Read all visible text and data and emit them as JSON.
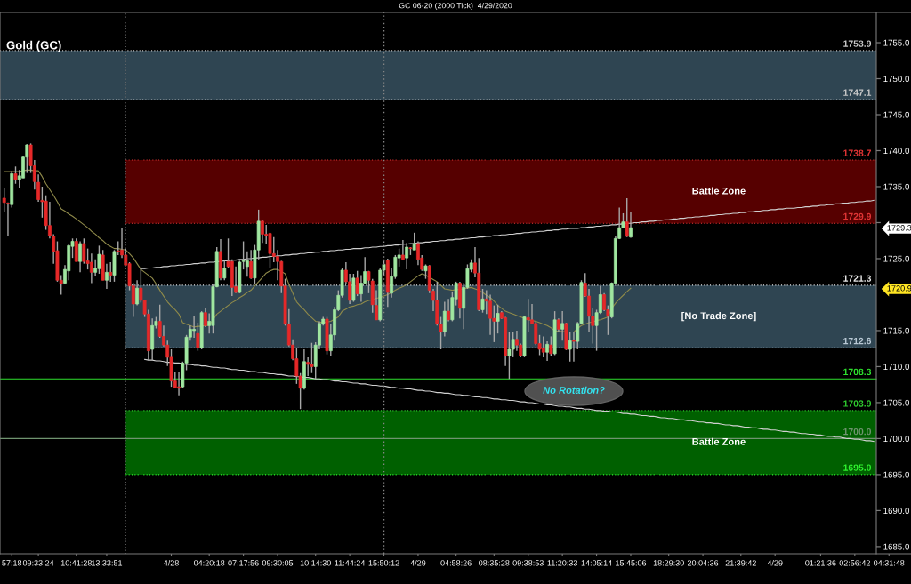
{
  "chart_data": {
    "type": "candlestick",
    "title": "GC 06-20 (2000 Tick)  4/29/2020",
    "subtitle": "Gold (GC)",
    "categories": [
      null,
      null,
      "57:18",
      null,
      null,
      null,
      null,
      null,
      null,
      "09:33:24",
      null,
      null,
      null,
      null,
      null,
      null,
      null,
      null,
      null,
      "10:41:28",
      null,
      null,
      null,
      null,
      null,
      null,
      null,
      "13:33:51",
      null,
      null,
      null,
      null,
      null,
      null,
      null,
      null,
      null,
      null,
      null,
      null,
      null,
      null,
      null,
      null,
      "4/28",
      null,
      null,
      null,
      null,
      null,
      null,
      null,
      null,
      null,
      "04:20:18",
      null,
      null,
      null,
      null,
      null,
      null,
      null,
      null,
      "07:17:56",
      null,
      null,
      null,
      null,
      null,
      null,
      null,
      null,
      "09:30:05",
      null,
      null,
      null,
      null,
      null,
      null,
      null,
      null,
      null,
      "10:14:30",
      null,
      null,
      null,
      null,
      null,
      null,
      null,
      null,
      "11:44:24",
      null,
      null,
      null,
      null,
      null,
      null,
      null,
      null,
      "15:50:12",
      null,
      null,
      null,
      null,
      null,
      null,
      null,
      null,
      "4/29",
      null,
      null,
      null,
      null,
      null,
      null,
      null,
      null,
      null,
      "04:58:26",
      null,
      null,
      null,
      null,
      null,
      null,
      null,
      null,
      null,
      "08:35:28",
      null,
      null,
      null,
      null,
      null,
      null,
      null,
      null,
      "09:38:53",
      null,
      null,
      null,
      null,
      null,
      null,
      null,
      null,
      "11:20:33",
      null,
      null,
      null,
      null,
      null,
      null,
      null,
      null,
      "14:05:14",
      null,
      null,
      null,
      null,
      null,
      null,
      null,
      null,
      "15:45:06",
      null,
      null,
      null,
      null,
      null,
      null,
      null,
      null,
      null,
      "18:29:30",
      null,
      null,
      null,
      null,
      null,
      null,
      null,
      null,
      "20:04:36",
      null,
      null,
      null,
      null,
      null,
      null,
      null,
      null,
      null,
      "21:39:42",
      null,
      null,
      null,
      null,
      null,
      null,
      null,
      null,
      "4/29",
      null,
      null,
      null,
      null,
      null,
      null,
      null,
      null,
      null,
      null,
      null,
      "01:21:36",
      null,
      null,
      null,
      null,
      null,
      null,
      null,
      null,
      "02:56:42",
      null,
      null,
      null,
      null,
      null,
      null,
      null,
      null,
      "04:31:48",
      null
    ],
    "ohlc": [
      [
        1733.4,
        1734.8,
        1731.5,
        1732.8
      ],
      [
        1732.7,
        1732.8,
        1728.2,
        1732.6
      ],
      [
        1732.5,
        1737.2,
        1732.1,
        1736.8
      ],
      [
        1736.8,
        1737.8,
        1735.4,
        1736.0
      ],
      [
        1736.0,
        1737.3,
        1734.8,
        1736.5
      ],
      [
        1736.2,
        1739.3,
        1736.2,
        1739.1
      ],
      [
        1739.1,
        1740.9,
        1736.9,
        1740.8
      ],
      [
        1740.8,
        1741.0,
        1736.9,
        1737.9
      ],
      [
        1737.9,
        1738.7,
        1734.6,
        1735.7
      ],
      [
        1735.6,
        1736.7,
        1732.9,
        1733.2
      ],
      [
        1733.1,
        1735.0,
        1730.7,
        1732.9
      ],
      [
        1733.0,
        1733.8,
        1729.0,
        1729.6
      ],
      [
        1729.6,
        1732.9,
        1727.8,
        1728.2
      ],
      [
        1728.1,
        1728.4,
        1724.3,
        1726.0
      ],
      [
        1726.1,
        1727.4,
        1721.8,
        1722.0
      ],
      [
        1722.0,
        1722.7,
        1720.0,
        1721.5
      ],
      [
        1721.6,
        1724.1,
        1721.5,
        1723.5
      ],
      [
        1723.3,
        1727.0,
        1722.0,
        1726.8
      ],
      [
        1726.7,
        1727.8,
        1725.1,
        1727.4
      ],
      [
        1727.4,
        1727.8,
        1724.6,
        1724.6
      ],
      [
        1724.6,
        1727.4,
        1723.1,
        1727.1
      ],
      [
        1727.1,
        1727.8,
        1724.3,
        1724.6
      ],
      [
        1724.7,
        1726.4,
        1723.5,
        1724.3
      ],
      [
        1724.5,
        1725.7,
        1721.6,
        1723.1
      ],
      [
        1723.1,
        1724.9,
        1722.6,
        1723.7
      ],
      [
        1723.6,
        1726.8,
        1722.9,
        1725.6
      ],
      [
        1725.5,
        1726.2,
        1722.0,
        1722.0
      ],
      [
        1722.0,
        1724.3,
        1720.8,
        1723.1
      ],
      [
        1723.1,
        1724.5,
        1721.8,
        1722.7
      ],
      [
        1722.7,
        1726.2,
        1721.8,
        1726.0
      ],
      [
        1726.1,
        1727.4,
        1725.5,
        1726.0
      ],
      [
        1726.2,
        1729.2,
        1725.1,
        1725.5
      ],
      [
        1725.5,
        1726.4,
        1724.1,
        1724.1
      ],
      [
        1724.3,
        1724.5,
        1720.6,
        1721.2
      ],
      [
        1721.2,
        1721.6,
        1716.9,
        1718.7
      ],
      [
        1718.7,
        1722.0,
        1718.5,
        1720.9
      ],
      [
        1720.9,
        1723.7,
        1718.9,
        1719.2
      ],
      [
        1719.2,
        1719.2,
        1716.9,
        1717.3
      ],
      [
        1717.3,
        1717.9,
        1710.9,
        1712.2
      ],
      [
        1712.4,
        1716.7,
        1710.9,
        1715.7
      ],
      [
        1715.7,
        1716.9,
        1715.3,
        1716.3
      ],
      [
        1716.3,
        1718.6,
        1714.0,
        1714.2
      ],
      [
        1714.2,
        1715.7,
        1712.8,
        1713.0
      ],
      [
        1713.0,
        1713.6,
        1710.1,
        1711.3
      ],
      [
        1711.3,
        1712.4,
        1707.2,
        1708.0
      ],
      [
        1708.0,
        1709.3,
        1707.0,
        1707.1
      ],
      [
        1707.2,
        1709.3,
        1706.0,
        1707.0
      ],
      [
        1707.2,
        1710.7,
        1707.0,
        1710.5
      ],
      [
        1710.5,
        1714.4,
        1709.5,
        1714.1
      ],
      [
        1714.1,
        1715.7,
        1713.6,
        1715.2
      ],
      [
        1715.0,
        1717.1,
        1714.0,
        1715.2
      ],
      [
        1714.6,
        1716.1,
        1712.2,
        1712.6
      ],
      [
        1712.6,
        1717.7,
        1712.4,
        1717.5
      ],
      [
        1717.5,
        1718.1,
        1715.5,
        1715.7
      ],
      [
        1715.7,
        1717.4,
        1714.6,
        1716.3
      ],
      [
        1715.7,
        1721.4,
        1714.6,
        1721.1
      ],
      [
        1721.1,
        1726.6,
        1721.0,
        1726.0
      ],
      [
        1726.0,
        1727.7,
        1722.0,
        1722.3
      ],
      [
        1722.3,
        1724.7,
        1722.0,
        1723.7
      ],
      [
        1724.6,
        1727.8,
        1723.7,
        1723.9
      ],
      [
        1724.6,
        1724.9,
        1719.8,
        1721.0
      ],
      [
        1721.1,
        1723.9,
        1720.2,
        1720.3
      ],
      [
        1720.3,
        1724.7,
        1720.2,
        1724.5
      ],
      [
        1724.6,
        1727.4,
        1723.5,
        1724.7
      ],
      [
        1723.9,
        1726.0,
        1722.5,
        1724.7
      ],
      [
        1724.6,
        1726.2,
        1722.2,
        1722.3
      ],
      [
        1722.3,
        1726.9,
        1721.4,
        1726.2
      ],
      [
        1726.2,
        1731.8,
        1724.9,
        1730.2
      ],
      [
        1730.2,
        1730.4,
        1727.2,
        1728.4
      ],
      [
        1728.4,
        1729.7,
        1727.0,
        1728.2
      ],
      [
        1728.5,
        1728.6,
        1723.7,
        1725.7
      ],
      [
        1725.7,
        1728.0,
        1724.5,
        1725.3
      ],
      [
        1725.3,
        1726.2,
        1722.0,
        1724.6
      ],
      [
        1724.6,
        1724.7,
        1720.2,
        1721.2
      ],
      [
        1721.2,
        1722.2,
        1715.7,
        1715.9
      ],
      [
        1715.9,
        1718.0,
        1712.8,
        1713.0
      ],
      [
        1713.0,
        1713.8,
        1710.9,
        1711.1
      ],
      [
        1711.1,
        1712.6,
        1707.6,
        1708.7
      ],
      [
        1708.7,
        1709.1,
        1704.1,
        1707.0
      ],
      [
        1707.0,
        1712.4,
        1706.8,
        1710.7
      ],
      [
        1710.6,
        1711.3,
        1708.7,
        1710.3
      ],
      [
        1710.3,
        1713.3,
        1709.1,
        1710.0
      ],
      [
        1710.0,
        1713.4,
        1708.3,
        1713.0
      ],
      [
        1713.0,
        1716.3,
        1712.4,
        1716.0
      ],
      [
        1715.9,
        1716.9,
        1715.7,
        1716.6
      ],
      [
        1716.6,
        1716.9,
        1711.7,
        1712.2
      ],
      [
        1712.2,
        1715.9,
        1711.5,
        1714.4
      ],
      [
        1714.4,
        1718.3,
        1713.6,
        1717.9
      ],
      [
        1717.9,
        1720.6,
        1717.7,
        1719.9
      ],
      [
        1719.9,
        1723.7,
        1719.6,
        1723.4
      ],
      [
        1723.4,
        1724.5,
        1721.4,
        1721.8
      ],
      [
        1721.8,
        1722.9,
        1718.7,
        1719.2
      ],
      [
        1719.2,
        1722.9,
        1719.0,
        1722.3
      ],
      [
        1722.3,
        1723.3,
        1719.8,
        1720.1
      ],
      [
        1720.1,
        1722.7,
        1719.0,
        1721.6
      ],
      [
        1721.6,
        1725.2,
        1721.4,
        1723.2
      ],
      [
        1723.2,
        1723.3,
        1720.2,
        1722.0
      ],
      [
        1721.9,
        1722.2,
        1717.5,
        1718.6
      ],
      [
        1718.5,
        1720.6,
        1716.5,
        1716.5
      ],
      [
        1716.5,
        1723.7,
        1716.3,
        1723.4
      ],
      [
        1723.4,
        1724.9,
        1722.7,
        1724.2
      ],
      [
        1724.8,
        1725.0,
        1718.3,
        1720.3
      ],
      [
        1720.2,
        1723.7,
        1719.6,
        1722.5
      ],
      [
        1722.5,
        1725.5,
        1722.2,
        1725.2
      ],
      [
        1725.1,
        1726.4,
        1723.9,
        1725.5
      ],
      [
        1725.5,
        1727.6,
        1724.9,
        1724.9
      ],
      [
        1725.1,
        1727.2,
        1723.5,
        1726.6
      ],
      [
        1726.5,
        1726.6,
        1725.5,
        1726.4
      ],
      [
        1726.2,
        1728.6,
        1726.2,
        1727.1
      ],
      [
        1727.1,
        1727.4,
        1724.1,
        1724.9
      ],
      [
        1725.1,
        1725.5,
        1723.3,
        1723.5
      ],
      [
        1723.3,
        1724.2,
        1722.2,
        1724.0
      ],
      [
        1724.0,
        1724.1,
        1720.2,
        1720.6
      ],
      [
        1720.5,
        1720.8,
        1717.7,
        1719.2
      ],
      [
        1719.2,
        1721.8,
        1715.7,
        1715.9
      ],
      [
        1715.9,
        1716.9,
        1712.4,
        1714.8
      ],
      [
        1714.8,
        1719.0,
        1714.2,
        1717.7
      ],
      [
        1717.7,
        1719.4,
        1716.3,
        1716.5
      ],
      [
        1716.5,
        1720.4,
        1716.3,
        1719.6
      ],
      [
        1719.4,
        1721.8,
        1718.5,
        1721.6
      ],
      [
        1721.6,
        1721.8,
        1716.7,
        1718.1
      ],
      [
        1718.1,
        1721.6,
        1715.2,
        1721.0
      ],
      [
        1721.0,
        1724.2,
        1720.8,
        1723.6
      ],
      [
        1723.5,
        1724.9,
        1723.1,
        1724.4
      ],
      [
        1724.4,
        1726.6,
        1722.4,
        1723.0
      ],
      [
        1723.0,
        1725.1,
        1717.7,
        1717.9
      ],
      [
        1717.9,
        1720.8,
        1717.5,
        1719.4
      ],
      [
        1719.4,
        1720.6,
        1717.3,
        1719.1
      ],
      [
        1719.1,
        1720.0,
        1714.4,
        1716.7
      ],
      [
        1716.7,
        1718.5,
        1713.4,
        1716.3
      ],
      [
        1716.3,
        1718.6,
        1714.6,
        1717.4
      ],
      [
        1717.5,
        1717.7,
        1716.6,
        1716.7
      ],
      [
        1716.8,
        1716.9,
        1710.1,
        1711.5
      ],
      [
        1711.5,
        1714.8,
        1708.3,
        1712.4
      ],
      [
        1712.4,
        1714.8,
        1711.3,
        1713.8
      ],
      [
        1713.8,
        1715.0,
        1712.2,
        1713.0
      ],
      [
        1713.0,
        1713.2,
        1711.3,
        1711.5
      ],
      [
        1711.5,
        1717.0,
        1711.3,
        1716.9
      ],
      [
        1716.8,
        1719.4,
        1714.8,
        1716.5
      ],
      [
        1716.5,
        1718.7,
        1715.9,
        1716.0
      ],
      [
        1716.0,
        1716.2,
        1713.0,
        1713.2
      ],
      [
        1713.2,
        1714.4,
        1711.6,
        1712.4
      ],
      [
        1712.6,
        1714.2,
        1711.3,
        1712.0
      ],
      [
        1712.0,
        1713.5,
        1710.8,
        1713.1
      ],
      [
        1713.0,
        1714.2,
        1711.5,
        1711.8
      ],
      [
        1711.8,
        1717.7,
        1711.6,
        1716.5
      ],
      [
        1716.5,
        1716.7,
        1714.8,
        1715.2
      ],
      [
        1715.2,
        1717.7,
        1713.6,
        1716.0
      ],
      [
        1716.0,
        1716.1,
        1712.3,
        1712.4
      ],
      [
        1712.4,
        1714.8,
        1710.7,
        1713.6
      ],
      [
        1713.7,
        1714.8,
        1710.7,
        1713.5
      ],
      [
        1713.5,
        1716.2,
        1712.4,
        1716.0
      ],
      [
        1716.0,
        1722.0,
        1715.9,
        1721.7
      ],
      [
        1721.6,
        1723.0,
        1719.7,
        1719.8
      ],
      [
        1719.8,
        1720.8,
        1714.8,
        1717.0
      ],
      [
        1717.0,
        1718.1,
        1713.2,
        1715.7
      ],
      [
        1715.7,
        1717.9,
        1712.2,
        1717.5
      ],
      [
        1717.5,
        1721.2,
        1717.3,
        1720.0
      ],
      [
        1720.0,
        1720.2,
        1717.7,
        1717.9
      ],
      [
        1717.9,
        1718.5,
        1714.4,
        1717.0
      ],
      [
        1716.9,
        1721.7,
        1716.7,
        1721.6
      ],
      [
        1721.6,
        1728.2,
        1721.4,
        1727.8
      ],
      [
        1727.8,
        1732.1,
        1727.7,
        1729.3
      ],
      [
        1729.3,
        1731.3,
        1729.2,
        1730.1
      ],
      [
        1730.1,
        1733.4,
        1728.0,
        1728.1
      ],
      [
        1728.0,
        1731.5,
        1727.9,
        1729.3
      ],
      null,
      null,
      null,
      null,
      null,
      null,
      null,
      null,
      null,
      null,
      null,
      null,
      null,
      null,
      null,
      null,
      null,
      null,
      null,
      null,
      null,
      null,
      null,
      null,
      null,
      null,
      null,
      null,
      null,
      null,
      null,
      null,
      null,
      null,
      null,
      null,
      null,
      null,
      null,
      null,
      null,
      null,
      null,
      null,
      null,
      null,
      null,
      null,
      null,
      null,
      null,
      null,
      null,
      null,
      null,
      null,
      null,
      null,
      null,
      null,
      null,
      null,
      null,
      null,
      null,
      null,
      null,
      null,
      null
    ],
    "colors": [
      "#e62828",
      "#e62828",
      "#a0e6a0",
      "#e62828",
      "#a0e6a0",
      "#a0e6a0",
      "#a0e6a0",
      "#e62828",
      "#e62828",
      "#e62828",
      "#e62828",
      "#e62828",
      "#e62828",
      "#e62828",
      "#e62828",
      "#e62828",
      "#a0e6a0",
      "#a0e6a0",
      "#a0e6a0",
      "#e62828",
      "#a0e6a0",
      "#e62828",
      "#e62828",
      "#e62828",
      "#a0e6a0",
      "#a0e6a0",
      "#e62828",
      "#a0e6a0",
      "#e62828",
      "#a0e6a0",
      "#e62828",
      "#e62828",
      "#e62828",
      "#e62828",
      "#e62828",
      "#a0e6a0",
      "#e62828",
      "#e62828",
      "#e62828",
      "#a0e6a0",
      "#a0e6a0",
      "#e62828",
      "#e62828",
      "#e62828",
      "#e62828",
      "#e62828",
      "#e62828",
      "#a0e6a0",
      "#a0e6a0",
      "#a0e6a0",
      "#a0e6a0",
      "#e62828",
      "#a0e6a0",
      "#e62828",
      "#a0e6a0",
      "#a0e6a0",
      "#a0e6a0",
      "#e62828",
      "#a0e6a0",
      "#e62828",
      "#e62828",
      "#e62828",
      "#a0e6a0",
      "#a0e6a0",
      "#a0e6a0",
      "#e62828",
      "#a0e6a0",
      "#a0e6a0",
      "#e62828",
      "#e62828",
      "#e62828",
      "#e62828",
      "#e62828",
      "#e62828",
      "#e62828",
      "#e62828",
      "#e62828",
      "#e62828",
      "#e62828",
      "#a0e6a0",
      "#e62828",
      "#e62828",
      "#a0e6a0",
      "#a0e6a0",
      "#a0e6a0",
      "#e62828",
      "#a0e6a0",
      "#a0e6a0",
      "#a0e6a0",
      "#a0e6a0",
      "#e62828",
      "#e62828",
      "#a0e6a0",
      "#e62828",
      "#a0e6a0",
      "#a0e6a0",
      "#e62828",
      "#e62828",
      "#e62828",
      "#a0e6a0",
      "#a0e6a0",
      "#e62828",
      "#a0e6a0",
      "#a0e6a0",
      "#a0e6a0",
      "#e62828",
      "#a0e6a0",
      "#e62828",
      "#a0e6a0",
      "#e62828",
      "#e62828",
      "#a0e6a0",
      "#e62828",
      "#e62828",
      "#e62828",
      "#e62828",
      "#a0e6a0",
      "#e62828",
      "#a0e6a0",
      "#a0e6a0",
      "#e62828",
      "#a0e6a0",
      "#a0e6a0",
      "#a0e6a0",
      "#e62828",
      "#e62828",
      "#a0e6a0",
      "#e62828",
      "#e62828",
      "#e62828",
      "#a0e6a0",
      "#e62828",
      "#e62828",
      "#a0e6a0",
      "#a0e6a0",
      "#e62828",
      "#e62828",
      "#a0e6a0",
      "#e62828",
      "#e62828",
      "#e62828",
      "#e62828",
      "#e62828",
      "#a0e6a0",
      "#e62828",
      "#a0e6a0",
      "#e62828",
      "#a0e6a0",
      "#e62828",
      "#a0e6a0",
      "#e62828",
      "#a0e6a0",
      "#a0e6a0",
      "#e62828",
      "#e62828",
      "#e62828",
      "#a0e6a0",
      "#a0e6a0",
      "#e62828",
      "#e62828",
      "#a0e6a0",
      "#a0e6a0",
      "#a0e6a0",
      "#a0e6a0",
      "#e62828",
      "#a0e6a0",
      null,
      null,
      null,
      null,
      null,
      null,
      null,
      null,
      null,
      null,
      null,
      null,
      null,
      null,
      null,
      null,
      null,
      null,
      null,
      null,
      null,
      null,
      null,
      null,
      null,
      null,
      null,
      null,
      null,
      null,
      null,
      null,
      null,
      null,
      null,
      null,
      null,
      null,
      null,
      null,
      null,
      null,
      null,
      null,
      null,
      null,
      null,
      null,
      null,
      null,
      null,
      null,
      null,
      null,
      null,
      null,
      null,
      null,
      null,
      null,
      null,
      null,
      null,
      null,
      null,
      null,
      null,
      null,
      null
    ],
    "series": [
      {
        "type": "line",
        "color": "#8f8a4a",
        "values": [
          1737.1,
          1737.1,
          1737.1,
          1737.1,
          1737.1,
          1737.2,
          1737.3,
          1737.3,
          1737.2,
          1737.2,
          1736.4,
          1735.4,
          1734.6,
          1733.8,
          1732.9,
          1731.9,
          1731.6,
          1731.2,
          1730.9,
          1730.5,
          1730.1,
          1729.7,
          1729.3,
          1728.8,
          1728.4,
          1727.9,
          1727.5,
          1727.0,
          1726.7,
          1726.4,
          1726.4,
          1726.3,
          1726.2,
          1725.7,
          1725.1,
          1724.3,
          1723.5,
          1723.1,
          1722.7,
          1722.3,
          1721.5,
          1720.6,
          1719.8,
          1719.0,
          1718.4,
          1717.9,
          1717.3,
          1716.1,
          1715.9,
          1715.7,
          1715.5,
          1715.6,
          1715.6,
          1715.7,
          1715.7,
          1716.5,
          1717.3,
          1717.7,
          1718.1,
          1718.5,
          1718.9,
          1719.2,
          1719.6,
          1719.9,
          1720.3,
          1720.6,
          1721.2,
          1721.8,
          1722.4,
          1723.0,
          1723.3,
          1723.5,
          1723.5,
          1723.2,
          1722.9,
          1721.4,
          1720.2,
          1719.0,
          1718.4,
          1717.9,
          1717.3,
          1716.8,
          1716.3,
          1716.2,
          1716.1,
          1716.2,
          1716.3,
          1716.6,
          1716.9,
          1717.7,
          1718.0,
          1718.3,
          1718.4,
          1718.6,
          1718.7,
          1719.0,
          1719.2,
          1719.3,
          1719.5,
          1719.6,
          1719.8,
          1720.0,
          1720.3,
          1720.6,
          1720.9,
          1721.1,
          1721.4,
          1721.8,
          1722.2,
          1722.6,
          1722.9,
          1722.7,
          1722.4,
          1722.1,
          1721.8,
          1721.3,
          1720.8,
          1720.7,
          1720.6,
          1720.7,
          1720.7,
          1720.8,
          1720.9,
          1721.0,
          1720.8,
          1720.6,
          1720.3,
          1719.9,
          1719.6,
          1719.1,
          1718.5,
          1718.1,
          1717.7,
          1717.5,
          1717.3,
          1717.1,
          1716.9,
          1716.7,
          1716.5,
          1716.4,
          1716.3,
          1716.1,
          1715.9,
          1715.7,
          1715.4,
          1715.0,
          1714.9,
          1714.9,
          1714.8,
          1714.8,
          1714.8,
          1715.3,
          1715.7,
          1715.9,
          1716.1,
          1716.2,
          1716.4,
          1716.5,
          1716.7,
          1716.9,
          1718.1,
          1718.8,
          1719.4,
          1719.9,
          1720.4,
          1720.9,
          null,
          null,
          null,
          null,
          null,
          null,
          null,
          null,
          null,
          null,
          null,
          null,
          null,
          null,
          null,
          null,
          null,
          null,
          null,
          null,
          null,
          null,
          null,
          null,
          null,
          null,
          null,
          null,
          null,
          null,
          null,
          null,
          null,
          null,
          null,
          null,
          null,
          null,
          null,
          null,
          null,
          null,
          null,
          null,
          null,
          null,
          null,
          null,
          null,
          null,
          null,
          null,
          null,
          null,
          null,
          null,
          null,
          null,
          null,
          null,
          null,
          null,
          null,
          null,
          null,
          null,
          null,
          null,
          null
        ]
      },
      {
        "type": "line",
        "color": "#d0d0d0",
        "values": [
          null,
          null,
          null,
          null,
          null,
          null,
          null,
          null,
          null,
          null,
          null,
          null,
          null,
          null,
          null,
          null,
          null,
          null,
          null,
          null,
          null,
          null,
          null,
          null,
          null,
          null,
          null,
          null,
          null,
          null,
          null,
          null,
          null,
          null,
          null,
          null,
          1723.6,
          1723.6,
          1723.7,
          1723.7,
          1723.8,
          1723.8,
          1723.9,
          1723.9,
          1724.0,
          1724.0,
          1724.1,
          1724.1,
          1724.2,
          1724.2,
          1724.3,
          1724.3,
          1724.4,
          1724.4,
          1724.5,
          1724.5,
          1724.6,
          1724.6,
          1724.7,
          1724.7,
          1724.8,
          1724.8,
          1724.9,
          1724.9,
          1725.0,
          1725.0,
          1725.1,
          1725.1,
          1725.2,
          1725.2,
          1725.3,
          1725.3,
          1725.4,
          1725.4,
          1725.5,
          1725.5,
          1725.6,
          1725.6,
          1725.7,
          1725.7,
          1725.8,
          1725.8,
          1725.9,
          1725.9,
          1726.0,
          1726.0,
          1726.1,
          1726.1,
          1726.2,
          1726.2,
          1726.3,
          1726.3,
          1726.4,
          1726.4,
          1726.4,
          1726.5,
          1726.5,
          1726.6,
          1726.6,
          1726.7,
          1726.7,
          1726.8,
          1726.8,
          1726.9,
          1726.9,
          1727.0,
          1727.0,
          1727.1,
          1727.1,
          1727.2,
          1727.2,
          1727.3,
          1727.3,
          1727.4,
          1727.4,
          1727.5,
          1727.5,
          1727.6,
          1727.6,
          1727.7,
          1727.7,
          1727.8,
          1727.8,
          1727.9,
          1727.9,
          1728.0,
          1728.0,
          1728.1,
          1728.1,
          1728.2,
          1728.2,
          1728.3,
          1728.3,
          1728.4,
          1728.4,
          1728.5,
          1728.5,
          1728.6,
          1728.6,
          1728.7,
          1728.7,
          1728.8,
          1728.8,
          1728.9,
          1728.9,
          1729.0,
          1729.0,
          1729.1,
          1729.1,
          1729.2,
          1729.2,
          1729.2,
          1729.3,
          1729.3,
          1729.4,
          1729.4,
          1729.5,
          1729.5,
          1729.6,
          1729.6,
          1729.7,
          1729.7,
          1729.8,
          1729.8,
          1729.9,
          1729.9,
          1730.0,
          1730.0,
          1730.1,
          1730.1,
          1730.2,
          1730.2,
          1730.3,
          1730.3,
          1730.4,
          1730.4,
          1730.5,
          1730.5,
          1730.6,
          1730.6,
          1730.7,
          1730.7,
          1730.8,
          1730.8,
          1730.9,
          1730.9,
          1731.0,
          1731.0,
          1731.1,
          1731.1,
          1731.2,
          1731.2,
          1731.3,
          1731.3,
          1731.4,
          1731.4,
          1731.5,
          1731.5,
          1731.6,
          1731.6,
          1731.7,
          1731.7,
          1731.8,
          1731.8,
          1731.9,
          1731.9,
          1732.0,
          1732.0,
          1732.0,
          1732.1,
          1732.1,
          1732.2,
          1732.2,
          1732.3,
          1732.3,
          1732.4,
          1732.4,
          1732.5,
          1732.5,
          1732.6,
          1732.6,
          1732.7,
          1732.7,
          1732.8,
          1732.8,
          1732.9,
          1732.9,
          1733.0,
          1733.0,
          1733.1,
          null,
          null,
          null,
          null,
          null
        ]
      },
      {
        "type": "line",
        "color": "#d0d0d0",
        "values": [
          null,
          null,
          null,
          null,
          null,
          null,
          null,
          null,
          null,
          null,
          null,
          null,
          null,
          null,
          null,
          null,
          null,
          null,
          null,
          null,
          null,
          null,
          null,
          null,
          null,
          null,
          null,
          null,
          null,
          null,
          null,
          null,
          null,
          null,
          null,
          null,
          null,
          1711.0,
          1710.9,
          1710.9,
          1710.8,
          1710.8,
          1710.7,
          1710.6,
          1710.6,
          1710.5,
          1710.5,
          1710.4,
          1710.3,
          1710.3,
          1710.2,
          1710.2,
          1710.1,
          1710.1,
          1710.0,
          1709.9,
          1709.9,
          1709.8,
          1709.8,
          1709.7,
          1709.6,
          1709.6,
          1709.5,
          1709.5,
          1709.4,
          1709.3,
          1709.3,
          1709.2,
          1709.2,
          1709.1,
          1709.0,
          1709.0,
          1708.9,
          1708.9,
          1708.8,
          1708.7,
          1708.7,
          1708.6,
          1708.6,
          1708.5,
          1708.5,
          1708.4,
          1708.3,
          1708.3,
          1708.2,
          1708.2,
          1708.1,
          1708.0,
          1708.0,
          1707.9,
          1707.9,
          1707.8,
          1707.7,
          1707.7,
          1707.6,
          1707.6,
          1707.5,
          1707.4,
          1707.4,
          1707.3,
          1707.3,
          1707.2,
          1707.1,
          1707.1,
          1707.0,
          1707.0,
          1706.9,
          1706.9,
          1706.8,
          1706.7,
          1706.7,
          1706.6,
          1706.6,
          1706.5,
          1706.4,
          1706.4,
          1706.3,
          1706.3,
          1706.2,
          1706.1,
          1706.1,
          1706.0,
          1706.0,
          1705.9,
          1705.8,
          1705.8,
          1705.7,
          1705.7,
          1705.6,
          1705.5,
          1705.5,
          1705.4,
          1705.4,
          1705.3,
          1705.3,
          1705.2,
          1705.1,
          1705.1,
          1705.0,
          1705.0,
          1704.9,
          1704.8,
          1704.8,
          1704.7,
          1704.7,
          1704.6,
          1704.5,
          1704.5,
          1704.4,
          1704.4,
          1704.3,
          1704.2,
          1704.2,
          1704.1,
          1704.1,
          1704.0,
          1703.9,
          1703.9,
          1703.8,
          1703.8,
          1703.7,
          1703.7,
          1703.6,
          1703.5,
          1703.5,
          1703.4,
          1703.4,
          1703.3,
          1703.2,
          1703.2,
          1703.1,
          1703.1,
          1703.0,
          1702.9,
          1702.9,
          1702.8,
          1702.8,
          1702.7,
          1702.6,
          1702.6,
          1702.5,
          1702.5,
          1702.4,
          1702.3,
          1702.3,
          1702.2,
          1702.2,
          1702.1,
          1702.1,
          1702.0,
          1701.9,
          1701.9,
          1701.8,
          1701.8,
          1701.7,
          1701.6,
          1701.6,
          1701.5,
          1701.5,
          1701.4,
          1701.3,
          1701.3,
          1701.2,
          1701.2,
          1701.1,
          1701.0,
          1701.0,
          1700.9,
          1700.9,
          1700.8,
          1700.7,
          1700.7,
          1700.6,
          1700.6,
          1700.5,
          1700.5,
          1700.4,
          1700.3,
          1700.3,
          1700.2,
          1700.2,
          1700.1,
          1700.0,
          1700.0,
          1699.9,
          1699.9,
          1699.8,
          1699.7,
          1699.7,
          1699.6,
          null,
          null,
          null,
          null,
          null
        ]
      }
    ],
    "ylim": [
      1684.0,
      1759.2
    ],
    "yticks": [
      {
        "value": 1685,
        "label": "1685.0"
      },
      {
        "value": 1690,
        "label": "1690.0"
      },
      {
        "value": 1695,
        "label": "1695.0"
      },
      {
        "value": 1700,
        "label": "1700.0"
      },
      {
        "value": 1705,
        "label": "1705.0"
      },
      {
        "value": 1710,
        "label": "1710.0"
      },
      {
        "value": 1715,
        "label": "1715.0"
      },
      {
        "value": 1720.9,
        "label": "1720.9"
      },
      {
        "value": 1725,
        "label": "1725.0"
      },
      {
        "value": 1729.3,
        "label": "1729.3"
      },
      {
        "value": 1730,
        "label": null
      },
      {
        "value": 1735,
        "label": "1735.0"
      },
      {
        "value": 1740,
        "label": "1740.0"
      },
      {
        "value": 1745,
        "label": "1745.0"
      },
      {
        "value": 1750,
        "label": "1750.0"
      },
      {
        "value": 1755,
        "label": "1755.0"
      }
    ],
    "bands": [
      {
        "axis": "y",
        "from": 1747.1,
        "to": 1753.9,
        "color": "#2f4552"
      },
      {
        "axis": "y",
        "from": 1729.9,
        "to": 1738.7,
        "label": "Battle Zone",
        "color": "#560000"
      },
      {
        "axis": "y",
        "from": 1712.6,
        "to": 1721.3,
        "label": "[No Trade Zone]",
        "color": "#2f4552"
      },
      {
        "axis": "y",
        "from": 1695.0,
        "to": 1703.9,
        "label": "Battle Zone",
        "color": "#006000"
      }
    ],
    "ref_lines": [
      {
        "axis": "y",
        "value": 1753.9,
        "label": "1753.9",
        "color": "#c8c8c8",
        "line_style": "dotted"
      },
      {
        "axis": "y",
        "value": 1747.1,
        "label": "1747.1",
        "color": "#c8c8c8",
        "line_style": "dotted"
      },
      {
        "axis": "y",
        "value": 1738.7,
        "label": "1738.7",
        "color": "#e03434",
        "line_style": "dotted"
      },
      {
        "axis": "y",
        "value": 1729.9,
        "label": "1729.9",
        "color": "#e03434",
        "line_style": "dotted"
      },
      {
        "axis": "y",
        "value": 1721.3,
        "label": "1721.3",
        "color": "#e8e8e8",
        "line_style": "dotted"
      },
      {
        "axis": "y",
        "value": 1712.6,
        "label": "1712.6",
        "color": "#b8c8d4",
        "line_style": "dotted"
      },
      {
        "axis": "y",
        "value": 1708.3,
        "label": "1708.3",
        "color": "#2ee02e",
        "line_style": "solid"
      },
      {
        "axis": "y",
        "value": 1703.9,
        "label": "1703.9",
        "color": "#2ec82e",
        "line_style": "dotted"
      },
      {
        "axis": "y",
        "value": 1700.0,
        "label": "1700.0",
        "color": "#6f936f",
        "line_style": "solid"
      },
      {
        "axis": "y",
        "value": 1695.0,
        "label": "1695.0",
        "color": "#2ef02e",
        "line_style": "dotted"
      },
      {
        "axis": "x",
        "value": "15:50:12",
        "color": "#858585",
        "line_style": "dotted"
      }
    ],
    "annotations": [
      "No Rotation?"
    ]
  }
}
